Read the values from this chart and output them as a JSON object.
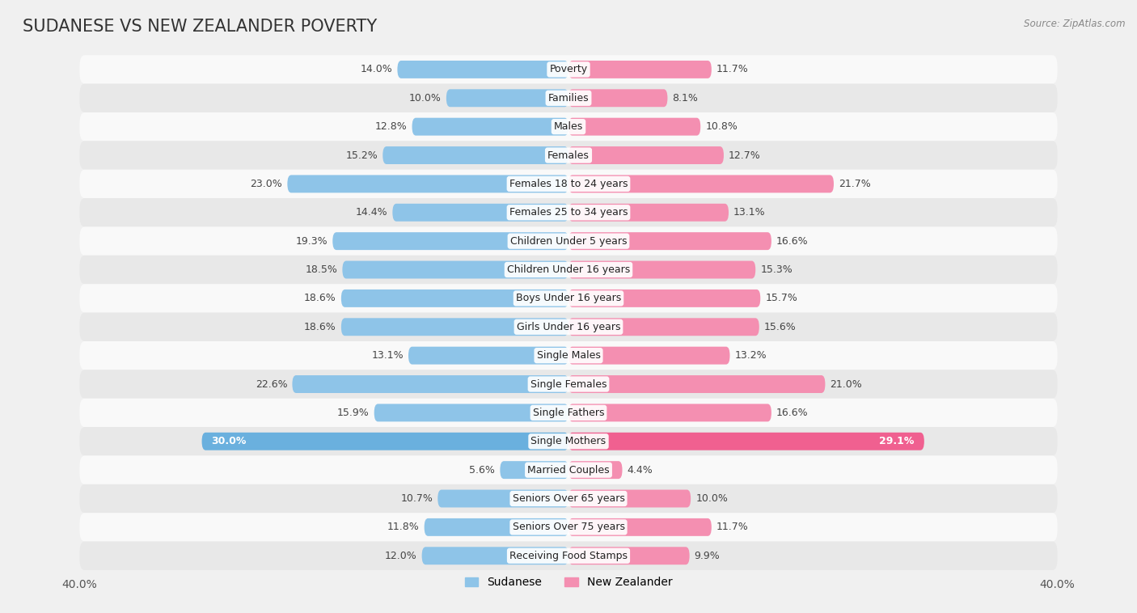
{
  "title": "SUDANESE VS NEW ZEALANDER POVERTY",
  "source": "Source: ZipAtlas.com",
  "categories": [
    "Poverty",
    "Families",
    "Males",
    "Females",
    "Females 18 to 24 years",
    "Females 25 to 34 years",
    "Children Under 5 years",
    "Children Under 16 years",
    "Boys Under 16 years",
    "Girls Under 16 years",
    "Single Males",
    "Single Females",
    "Single Fathers",
    "Single Mothers",
    "Married Couples",
    "Seniors Over 65 years",
    "Seniors Over 75 years",
    "Receiving Food Stamps"
  ],
  "sudanese": [
    14.0,
    10.0,
    12.8,
    15.2,
    23.0,
    14.4,
    19.3,
    18.5,
    18.6,
    18.6,
    13.1,
    22.6,
    15.9,
    30.0,
    5.6,
    10.7,
    11.8,
    12.0
  ],
  "new_zealander": [
    11.7,
    8.1,
    10.8,
    12.7,
    21.7,
    13.1,
    16.6,
    15.3,
    15.7,
    15.6,
    13.2,
    21.0,
    16.6,
    29.1,
    4.4,
    10.0,
    11.7,
    9.9
  ],
  "sudanese_color": "#8ec4e8",
  "new_zealander_color": "#f48fb1",
  "highlight_sudanese_color": "#6ab0de",
  "highlight_nz_color": "#f06090",
  "axis_max": 40.0,
  "background_color": "#f0f0f0",
  "row_bg_even": "#f9f9f9",
  "row_bg_odd": "#e8e8e8",
  "bar_height": 0.62,
  "title_fontsize": 15,
  "label_fontsize": 9,
  "category_fontsize": 9,
  "legend_fontsize": 10,
  "highlight_rows": [
    13
  ]
}
